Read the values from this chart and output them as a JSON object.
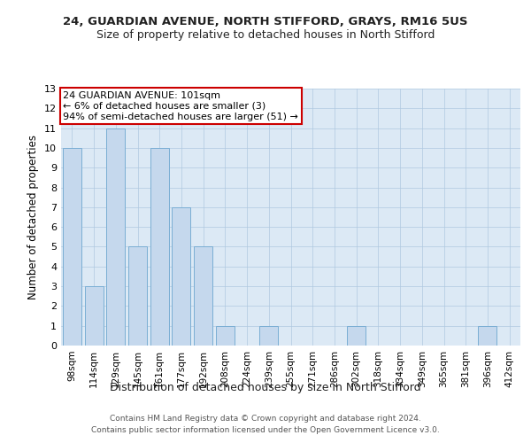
{
  "title1": "24, GUARDIAN AVENUE, NORTH STIFFORD, GRAYS, RM16 5US",
  "title2": "Size of property relative to detached houses in North Stifford",
  "xlabel": "Distribution of detached houses by size in North Stifford",
  "ylabel": "Number of detached properties",
  "categories": [
    "98sqm",
    "114sqm",
    "129sqm",
    "145sqm",
    "161sqm",
    "177sqm",
    "192sqm",
    "208sqm",
    "224sqm",
    "239sqm",
    "255sqm",
    "271sqm",
    "286sqm",
    "302sqm",
    "318sqm",
    "334sqm",
    "349sqm",
    "365sqm",
    "381sqm",
    "396sqm",
    "412sqm"
  ],
  "values": [
    10,
    3,
    11,
    5,
    10,
    7,
    5,
    1,
    0,
    1,
    0,
    0,
    0,
    1,
    0,
    0,
    0,
    0,
    0,
    1,
    0
  ],
  "bar_color": "#c5d8ed",
  "bar_edge_color": "#7aaed4",
  "annotation_box_text": "24 GUARDIAN AVENUE: 101sqm\n← 6% of detached houses are smaller (3)\n94% of semi-detached houses are larger (51) →",
  "annotation_box_color": "#ffffff",
  "annotation_box_edge_color": "#cc0000",
  "annotation_text_fontsize": 8,
  "ylim": [
    0,
    13
  ],
  "yticks": [
    0,
    1,
    2,
    3,
    4,
    5,
    6,
    7,
    8,
    9,
    10,
    11,
    12,
    13
  ],
  "footnote1": "Contains HM Land Registry data © Crown copyright and database right 2024.",
  "footnote2": "Contains public sector information licensed under the Open Government Licence v3.0.",
  "background_color": "#ffffff",
  "axes_bg_color": "#dce9f5",
  "grid_color": "#b0c8e0",
  "title1_fontsize": 9.5,
  "title2_fontsize": 9,
  "ylabel_fontsize": 8.5,
  "xlabel_fontsize": 9,
  "tick_fontsize": 8
}
